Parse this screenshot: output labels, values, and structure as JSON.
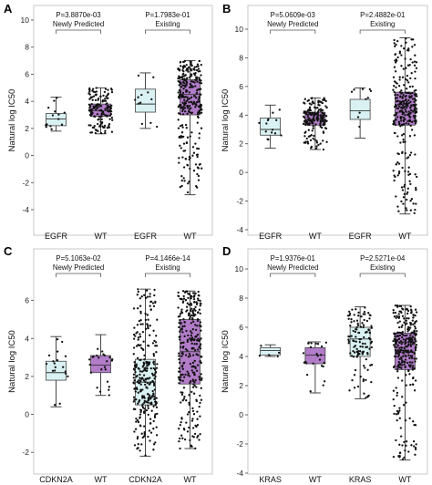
{
  "colors": {
    "mutant_box": "#d9f1f2",
    "wt_box": "#b27cc9",
    "point": "#111111",
    "bracket": "#555555"
  },
  "chart_data": [
    {
      "panel": "A",
      "type": "box",
      "ylabel": "Natural log IC50",
      "ylim": [
        -4,
        10
      ],
      "yticks": [
        -4,
        -2,
        0,
        2,
        4,
        6,
        8,
        10
      ],
      "categories": [
        "EGFR",
        "WT",
        "EGFR",
        "WT"
      ],
      "comparisons": [
        {
          "p": "P=3.8870e-03",
          "label": "Newly Predicted",
          "pair": [
            0,
            1
          ]
        },
        {
          "p": "P=1.7983e-01",
          "label": "Existing",
          "pair": [
            2,
            3
          ]
        }
      ],
      "boxes": [
        {
          "group": "mutant",
          "whislo": 1.8,
          "q1": 2.2,
          "med": 2.7,
          "q3": 3.1,
          "whishi": 4.3,
          "n": 14
        },
        {
          "group": "wt",
          "whislo": 1.6,
          "q1": 2.9,
          "med": 3.3,
          "q3": 3.8,
          "whishi": 5.0,
          "n": 150
        },
        {
          "group": "mutant",
          "whislo": 2.0,
          "q1": 3.2,
          "med": 3.8,
          "q3": 4.9,
          "whishi": 6.1,
          "n": 12
        },
        {
          "group": "wt",
          "whislo": -2.9,
          "q1": 3.0,
          "med": 4.5,
          "q3": 5.6,
          "whishi": 7.0,
          "n": 300
        }
      ]
    },
    {
      "panel": "B",
      "type": "box",
      "ylabel": "Natural log IC50",
      "ylim": [
        -4,
        10
      ],
      "yticks": [
        -4,
        -2,
        0,
        2,
        4,
        6,
        8,
        10
      ],
      "categories": [
        "EGFR",
        "WT",
        "EGFR",
        "WT"
      ],
      "comparisons": [
        {
          "p": "P=5.0609e-03",
          "label": "Newly Predicted",
          "pair": [
            0,
            1
          ]
        },
        {
          "p": "P=2.4882e-01",
          "label": "Existing",
          "pair": [
            2,
            3
          ]
        }
      ],
      "boxes": [
        {
          "group": "mutant",
          "whislo": 1.7,
          "q1": 2.6,
          "med": 3.0,
          "q3": 3.8,
          "whishi": 4.7,
          "n": 14
        },
        {
          "group": "wt",
          "whislo": 1.6,
          "q1": 3.3,
          "med": 3.7,
          "q3": 4.2,
          "whishi": 5.2,
          "n": 180
        },
        {
          "group": "mutant",
          "whislo": 2.4,
          "q1": 3.7,
          "med": 4.3,
          "q3": 5.1,
          "whishi": 5.9,
          "n": 10
        },
        {
          "group": "wt",
          "whislo": -2.9,
          "q1": 3.3,
          "med": 4.2,
          "q3": 5.6,
          "whishi": 9.4,
          "n": 300
        }
      ]
    },
    {
      "panel": "C",
      "type": "box",
      "ylabel": "Natural log IC50",
      "ylim": [
        -3,
        8
      ],
      "yticks": [
        -2,
        0,
        2,
        4,
        6
      ],
      "categories": [
        "CDKN2A",
        "WT",
        "CDKN2A",
        "WT"
      ],
      "comparisons": [
        {
          "p": "P=5.1063e-02",
          "label": "Newly Predicted",
          "pair": [
            0,
            1
          ]
        },
        {
          "p": "P=4.1466e-14",
          "label": "Existing",
          "pair": [
            2,
            3
          ]
        }
      ],
      "boxes": [
        {
          "group": "mutant",
          "whislo": 0.4,
          "q1": 1.8,
          "med": 2.2,
          "q3": 2.8,
          "whishi": 4.1,
          "n": 18
        },
        {
          "group": "wt",
          "whislo": 1.0,
          "q1": 2.2,
          "med": 2.6,
          "q3": 3.1,
          "whishi": 4.2,
          "n": 24
        },
        {
          "group": "mutant",
          "whislo": -2.2,
          "q1": 0.5,
          "med": 1.7,
          "q3": 2.9,
          "whishi": 6.6,
          "n": 300
        },
        {
          "group": "wt",
          "whislo": -1.8,
          "q1": 1.6,
          "med": 3.3,
          "q3": 5.0,
          "whishi": 6.5,
          "n": 300
        }
      ]
    },
    {
      "panel": "D",
      "type": "box",
      "ylabel": "Natural log IC50",
      "ylim": [
        -4,
        10
      ],
      "yticks": [
        -4,
        -2,
        0,
        2,
        4,
        6,
        8,
        10
      ],
      "categories": [
        "KRAS",
        "WT",
        "KRAS",
        "WT"
      ],
      "comparisons": [
        {
          "p": "P=1.9376e-01",
          "label": "Newly Predicted",
          "pair": [
            0,
            1
          ]
        },
        {
          "p": "P=2.5271e-04",
          "label": "Existing",
          "pair": [
            2,
            3
          ]
        }
      ],
      "boxes": [
        {
          "group": "mutant",
          "whislo": 4.0,
          "q1": 4.1,
          "med": 4.4,
          "q3": 4.6,
          "whishi": 4.8,
          "n": 5
        },
        {
          "group": "wt",
          "whislo": 1.5,
          "q1": 3.5,
          "med": 4.1,
          "q3": 4.6,
          "whishi": 5.0,
          "n": 24
        },
        {
          "group": "mutant",
          "whislo": 1.1,
          "q1": 4.0,
          "med": 5.2,
          "q3": 6.0,
          "whishi": 7.4,
          "n": 120
        },
        {
          "group": "wt",
          "whislo": -3.1,
          "q1": 3.1,
          "med": 4.3,
          "q3": 5.6,
          "whishi": 7.5,
          "n": 300
        }
      ]
    }
  ]
}
